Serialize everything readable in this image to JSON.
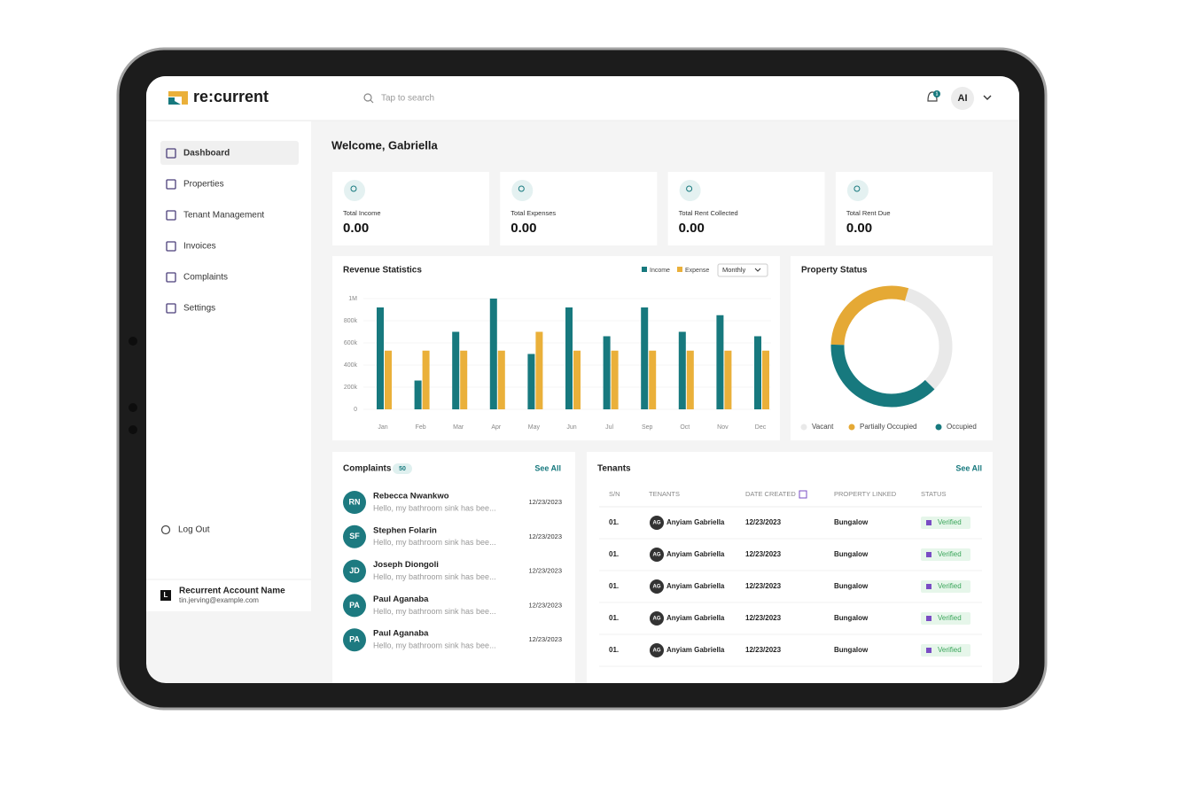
{
  "header": {
    "logo": "re:current",
    "search_placeholder": "Tap to search",
    "notification_count": "1",
    "avatar": "AI"
  },
  "sidebar": {
    "nav": [
      "Dashboard",
      "Properties",
      "Tenant Management",
      "Invoices",
      "Complaints",
      "Settings"
    ],
    "logout": "Log Out",
    "account": {
      "initial": "L",
      "name": "Recurrent Account Name",
      "email": "tin.jerving@example.com"
    }
  },
  "welcome": "Welcome, Gabriella",
  "stats": [
    {
      "label": "Total Income",
      "value": "0.00"
    },
    {
      "label": "Total Expenses",
      "value": "0.00"
    },
    {
      "label": "Total Rent Collected",
      "value": "0.00"
    },
    {
      "label": "Total Rent Due",
      "value": "0.00"
    }
  ],
  "revenue_chart": {
    "type": "bar",
    "title": "Revenue Statistics",
    "period": "Monthly",
    "categories": [
      "Jan",
      "Feb",
      "Mar",
      "Apr",
      "May",
      "Jun",
      "Jul",
      "Sep",
      "Oct",
      "Nov",
      "Dec"
    ],
    "series": [
      {
        "name": "Income",
        "color": "#17797e",
        "values": [
          920000,
          260000,
          700000,
          1000000,
          500000,
          920000,
          660000,
          920000,
          700000,
          850000,
          660000
        ]
      },
      {
        "name": "Expense",
        "color": "#eab03a",
        "values": [
          530000,
          530000,
          530000,
          530000,
          700000,
          530000,
          530000,
          530000,
          530000,
          530000,
          530000
        ]
      }
    ],
    "ylim": [
      0,
      1000000
    ],
    "yticks": [
      {
        "value": 0,
        "label": "0"
      },
      {
        "value": 200000,
        "label": "200k"
      },
      {
        "value": 400000,
        "label": "400k"
      },
      {
        "value": 600000,
        "label": "600k"
      },
      {
        "value": 800000,
        "label": "800k"
      },
      {
        "value": 1000000,
        "label": "1M"
      }
    ],
    "grid": true
  },
  "property_status": {
    "type": "pie",
    "title": "Property Status",
    "categories": [
      "Vacant",
      "Partially Occupied",
      "Occupied"
    ],
    "values": [
      33,
      29,
      38
    ],
    "colors": [
      "#e9e9e9",
      "#e5a935",
      "#17797e"
    ]
  },
  "complaints": {
    "title": "Complaints",
    "count": "50",
    "see_all": "See All",
    "items": [
      {
        "initials": "RN",
        "name": "Rebecca Nwankwo",
        "message": "Hello, my bathroom sink has bee...",
        "date": "12/23/2023"
      },
      {
        "initials": "SF",
        "name": "Stephen Folarin",
        "message": "Hello, my bathroom sink has bee...",
        "date": "12/23/2023"
      },
      {
        "initials": "JD",
        "name": "Joseph Diongoli",
        "message": "Hello, my bathroom sink has bee...",
        "date": "12/23/2023"
      },
      {
        "initials": "PA",
        "name": "Paul Aganaba",
        "message": "Hello, my bathroom sink has bee...",
        "date": "12/23/2023"
      },
      {
        "initials": "PA",
        "name": "Paul Aganaba",
        "message": "Hello, my bathroom sink has bee...",
        "date": "12/23/2023"
      }
    ]
  },
  "tenants": {
    "title": "Tenants",
    "see_all": "See All",
    "columns": [
      "S/N",
      "TENANTS",
      "DATE CREATED",
      "PROPERTY LINKED",
      "STATUS"
    ],
    "rows": [
      {
        "sn": "01.",
        "initials": "AG",
        "name": "Anyiam Gabriella",
        "date": "12/23/2023",
        "property": "Bungalow",
        "status": "Verified"
      },
      {
        "sn": "01.",
        "initials": "AG",
        "name": "Anyiam Gabriella",
        "date": "12/23/2023",
        "property": "Bungalow",
        "status": "Verified"
      },
      {
        "sn": "01.",
        "initials": "AG",
        "name": "Anyiam Gabriella",
        "date": "12/23/2023",
        "property": "Bungalow",
        "status": "Verified"
      },
      {
        "sn": "01.",
        "initials": "AG",
        "name": "Anyiam Gabriella",
        "date": "12/23/2023",
        "property": "Bungalow",
        "status": "Verified"
      },
      {
        "sn": "01.",
        "initials": "AG",
        "name": "Anyiam Gabriella",
        "date": "12/23/2023",
        "property": "Bungalow",
        "status": "Verified"
      }
    ]
  }
}
